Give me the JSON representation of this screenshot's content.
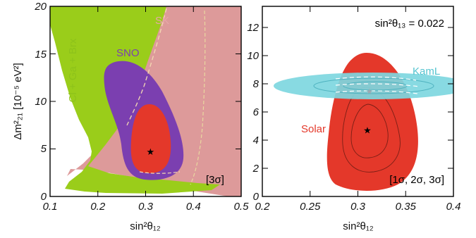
{
  "chart_data": [
    {
      "type": "contour",
      "panel": "left",
      "xlabel": "sin²θ₁₂",
      "ylabel": "Δm²₂₁ [10⁻⁵ eV²]",
      "xlim": [
        0.1,
        0.5
      ],
      "ylim": [
        0,
        20
      ],
      "xticks": [
        "0.1",
        "0.2",
        "0.3",
        "0.4",
        "0.5"
      ],
      "yticks": [
        "0",
        "5",
        "10",
        "15",
        "20"
      ],
      "regions": [
        {
          "name": "Cl + Ga + Brx",
          "color": "#9ACD1A"
        },
        {
          "name": "SK",
          "color": "#DD9A9A"
        },
        {
          "name": "SNO",
          "color": "#7B3FB0"
        },
        {
          "name": "",
          "color": "#E4382A"
        }
      ],
      "best_fit": {
        "x": 0.31,
        "y": 4.7
      },
      "corner_label": "[3σ]"
    },
    {
      "type": "contour",
      "panel": "right",
      "xlabel": "sin²θ₁₂",
      "xlim": [
        0.2,
        0.4
      ],
      "ylim": [
        0,
        13.5
      ],
      "xticks": [
        "0.2",
        "0.25",
        "0.3",
        "0.35",
        "0.4"
      ],
      "yticks": [
        "0",
        "2",
        "4",
        "6",
        "8",
        "10",
        "12"
      ],
      "annotation": "sin²θ₁₃ = 0.022",
      "regions": [
        {
          "name": "Solar",
          "color": "#E4382A",
          "best_fit": {
            "x": 0.31,
            "y": 4.7
          }
        },
        {
          "name": "KamL",
          "color": "#7ED7E0",
          "best_fit": {
            "x": 0.312,
            "y": 7.5
          }
        }
      ],
      "corner_label": "[1σ, 2σ, 3σ]"
    }
  ]
}
